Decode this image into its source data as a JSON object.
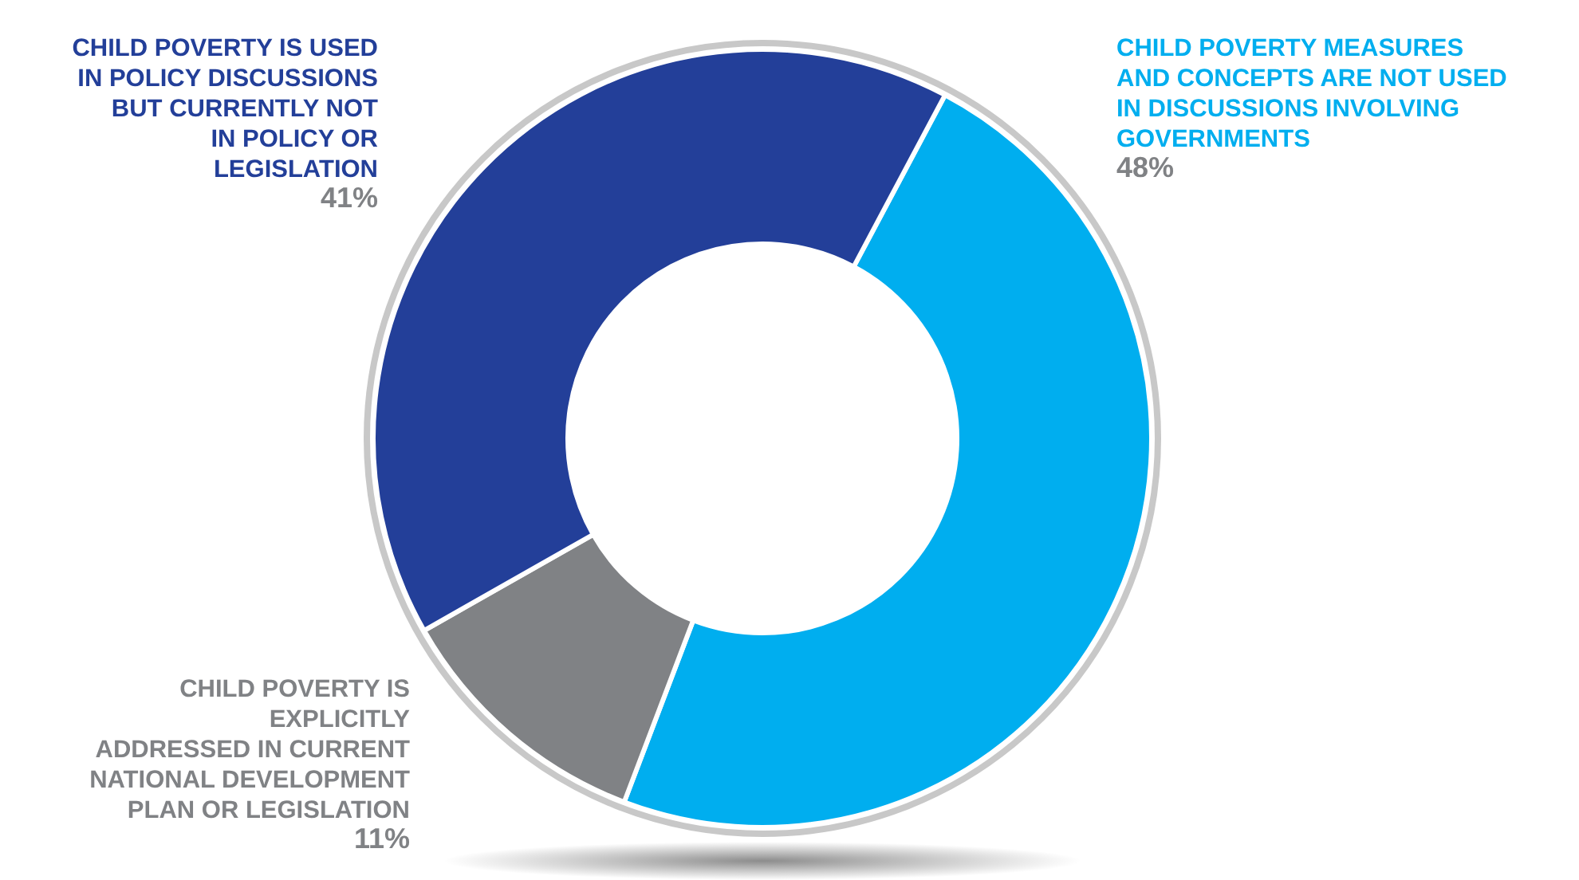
{
  "chart_data": {
    "type": "donut",
    "categories": [
      "CHILD POVERTY MEASURES\nAND CONCEPTS ARE NOT USED\nIN DISCUSSIONS INVOLVING\nGOVERNMENTS",
      "CHILD POVERTY IS\nEXPLICITLY\nADDRESSED IN CURRENT\nNATIONAL DEVELOPMENT\nPLAN OR LEGISLATION",
      "CHILD POVERTY IS USED\nIN POLICY DISCUSSIONS\nBUT CURRENTLY NOT\nIN POLICY OR\nLEGISLATION"
    ],
    "values": [
      48,
      11,
      41
    ],
    "colors": [
      "#00aeef",
      "#808285",
      "#233f99"
    ],
    "value_labels": [
      "48%",
      "11%",
      "41%"
    ]
  }
}
